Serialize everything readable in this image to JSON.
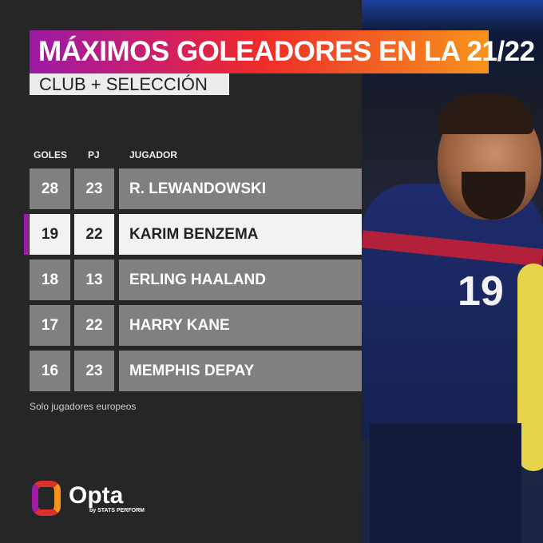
{
  "title": "MÁXIMOS GOLEADORES EN LA 21/22",
  "subtitle": "CLUB + SELECCIÓN",
  "footnote": "Solo jugadores europeos",
  "brand": {
    "name": "Opta",
    "sub": "by STATS PERFORM"
  },
  "photo": {
    "jersey_number": "19"
  },
  "colors": {
    "gradient": [
      "#9b1aa6",
      "#ee2b2a",
      "#f7941d"
    ],
    "row": "#808080",
    "highlight": "#f2f2f2"
  },
  "chart_data": {
    "type": "table",
    "columns": [
      "GOLES",
      "PJ",
      "JUGADOR"
    ],
    "rows": [
      {
        "goles": "28",
        "pj": "23",
        "jugador": "R. LEWANDOWSKI"
      },
      {
        "goles": "19",
        "pj": "22",
        "jugador": "KARIM BENZEMA",
        "highlighted": true
      },
      {
        "goles": "18",
        "pj": "13",
        "jugador": "ERLING HAALAND"
      },
      {
        "goles": "17",
        "pj": "22",
        "jugador": "HARRY KANE"
      },
      {
        "goles": "16",
        "pj": "23",
        "jugador": "MEMPHIS DEPAY"
      }
    ]
  }
}
